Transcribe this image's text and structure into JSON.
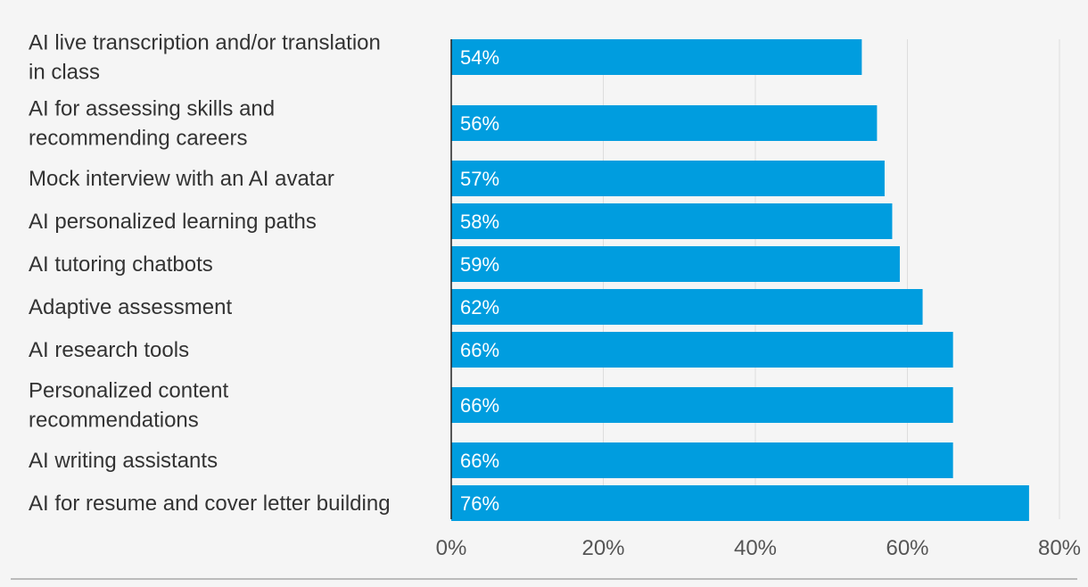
{
  "chart_data": {
    "type": "bar",
    "orientation": "horizontal",
    "categories": [
      [
        "AI live transcription and/or translation",
        "in class"
      ],
      [
        "AI for assessing skills and",
        "recommending careers"
      ],
      [
        "Mock interview with an AI avatar"
      ],
      [
        "AI personalized learning paths"
      ],
      [
        "AI tutoring chatbots"
      ],
      [
        "Adaptive assessment"
      ],
      [
        "AI research tools"
      ],
      [
        "Personalized content",
        "recommendations"
      ],
      [
        "AI writing assistants"
      ],
      [
        "AI for resume and cover letter building"
      ]
    ],
    "values": [
      54,
      56,
      57,
      58,
      59,
      62,
      66,
      66,
      66,
      76
    ],
    "value_labels": [
      "54%",
      "56%",
      "57%",
      "58%",
      "59%",
      "62%",
      "66%",
      "66%",
      "66%",
      "76%"
    ],
    "xlim": [
      0,
      80
    ],
    "xticks": [
      0,
      20,
      40,
      60,
      80
    ],
    "xtick_labels": [
      "0%",
      "20%",
      "40%",
      "60%",
      "80%"
    ],
    "grid": true,
    "colors": {
      "bar": "#009ddf",
      "grid": "#dddddd",
      "axis": "#222222",
      "bottom_rule": "#bbbbbb",
      "background": "#f5f5f5"
    }
  }
}
